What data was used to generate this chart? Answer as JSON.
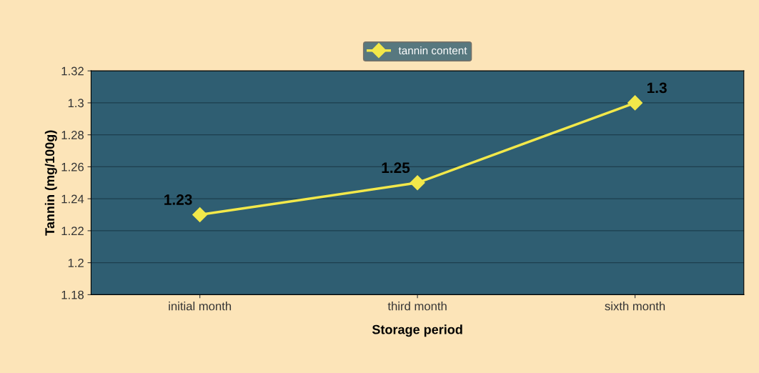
{
  "chart_data": {
    "type": "line",
    "xlabel": "Storage period",
    "ylabel": "Tannin (mg/100g)",
    "categories": [
      "initial month",
      "third month",
      "sixth month"
    ],
    "series": [
      {
        "name": "tannin content",
        "color": "#f2e84a",
        "values": [
          1.23,
          1.25,
          1.3
        ]
      }
    ],
    "ylim": [
      1.18,
      1.32
    ],
    "yticks": [
      1.18,
      1.2,
      1.22,
      1.24,
      1.26,
      1.28,
      1.3,
      1.32
    ],
    "grid": "y",
    "legend": "top",
    "marker": "diamond",
    "line_style": "solid",
    "data_labels": true
  }
}
